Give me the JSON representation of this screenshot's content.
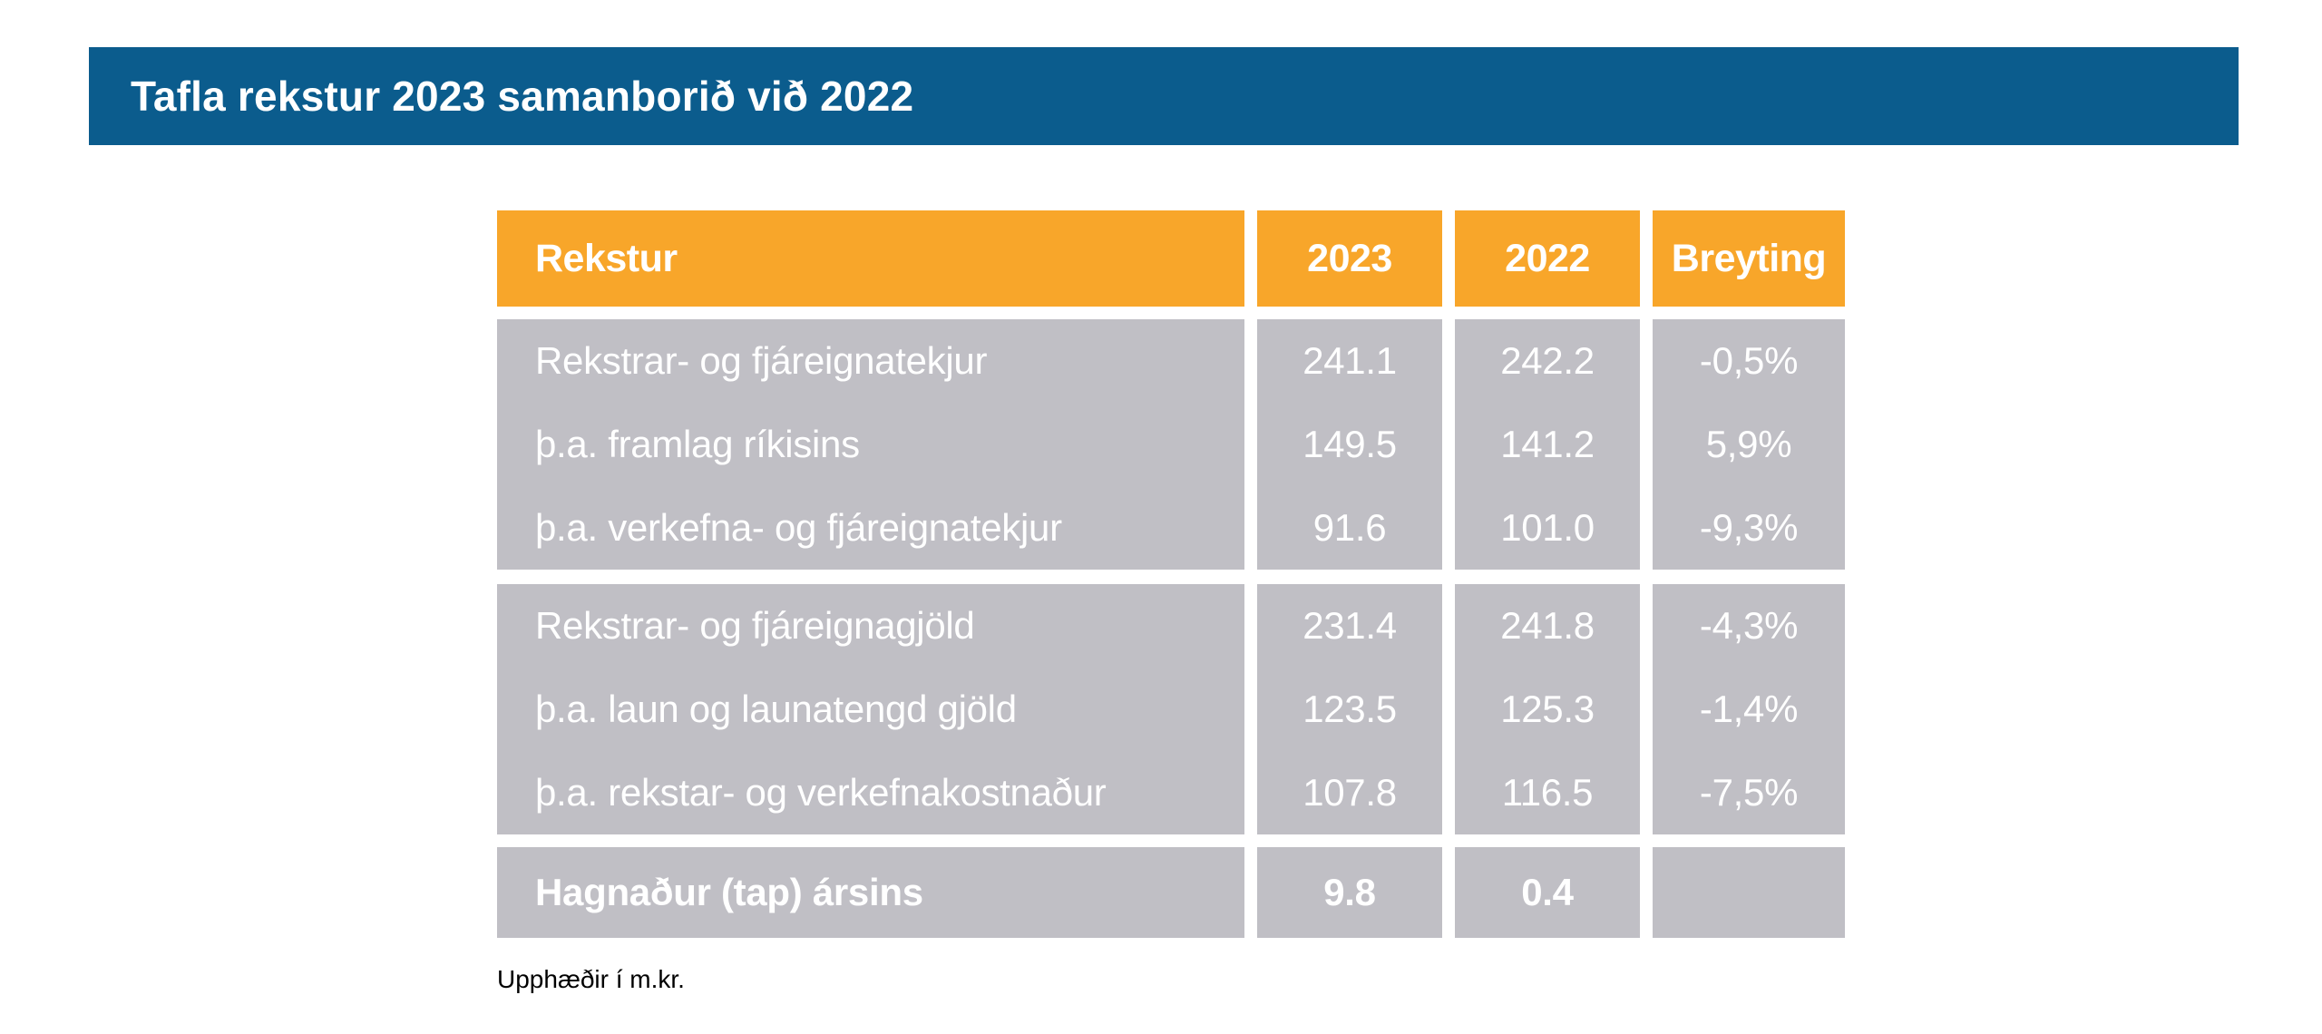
{
  "header": {
    "title": "Tafla rekstur 2023 samanborið við 2022",
    "bg_color": "#0b5c8d",
    "text_color": "#ffffff"
  },
  "table": {
    "columns": [
      "Rekstur",
      "2023",
      "2022",
      "Breyting"
    ],
    "header_bg": "#f8a62a",
    "body_bg": "#c0bfc5",
    "body_text_color": "#ffffff",
    "groups": [
      {
        "rows": [
          {
            "label": "Rekstrar- og fjáreignatekjur",
            "y2023": "241.1",
            "y2022": "242.2",
            "change": "-0,5%"
          },
          {
            "label": "þ.a. framlag ríkisins",
            "y2023": "149.5",
            "y2022": "141.2",
            "change": "5,9%"
          },
          {
            "label": "þ.a. verkefna- og fjáreignatekjur",
            "y2023": "91.6",
            "y2022": "101.0",
            "change": "-9,3%"
          }
        ]
      },
      {
        "rows": [
          {
            "label": "Rekstrar- og fjáreignagjöld",
            "y2023": "231.4",
            "y2022": "241.8",
            "change": "-4,3%"
          },
          {
            "label": "þ.a. laun og launatengd gjöld",
            "y2023": "123.5",
            "y2022": "125.3",
            "change": "-1,4%"
          },
          {
            "label": "þ.a. rekstar- og verkefnakostnaður",
            "y2023": "107.8",
            "y2022": "116.5",
            "change": "-7,5%"
          }
        ]
      },
      {
        "rows": [
          {
            "label": "Hagnaður (tap) ársins",
            "y2023": "9.8",
            "y2022": "0.4",
            "change": ""
          }
        ]
      }
    ],
    "footnote": "Upphæðir í m.kr."
  },
  "chart_data": {
    "type": "table",
    "title": "Tafla rekstur 2023 samanborið við 2022",
    "columns": [
      "Rekstur",
      "2023",
      "2022",
      "Breyting"
    ],
    "rows": [
      [
        "Rekstrar- og fjáreignatekjur",
        "241.1",
        "242.2",
        "-0,5%"
      ],
      [
        "þ.a. framlag ríkisins",
        "149.5",
        "141.2",
        "5,9%"
      ],
      [
        "þ.a. verkefna- og fjáreignatekjur",
        "91.6",
        "101.0",
        "-9,3%"
      ],
      [
        "Rekstrar- og fjáreignagjöld",
        "231.4",
        "241.8",
        "-4,3%"
      ],
      [
        "þ.a. laun og launatengd gjöld",
        "123.5",
        "125.3",
        "-1,4%"
      ],
      [
        "þ.a. rekstar- og verkefnakostnaður",
        "107.8",
        "116.5",
        "-7,5%"
      ],
      [
        "Hagnaður (tap) ársins",
        "9.8",
        "0.4",
        ""
      ]
    ],
    "footnote": "Upphæðir í m.kr.",
    "layout": {
      "row_groups": [
        [
          0,
          1,
          2
        ],
        [
          3,
          4,
          5
        ],
        [
          6
        ]
      ],
      "total_row_index": 6,
      "value_alignment": "center",
      "label_alignment": "left"
    }
  }
}
